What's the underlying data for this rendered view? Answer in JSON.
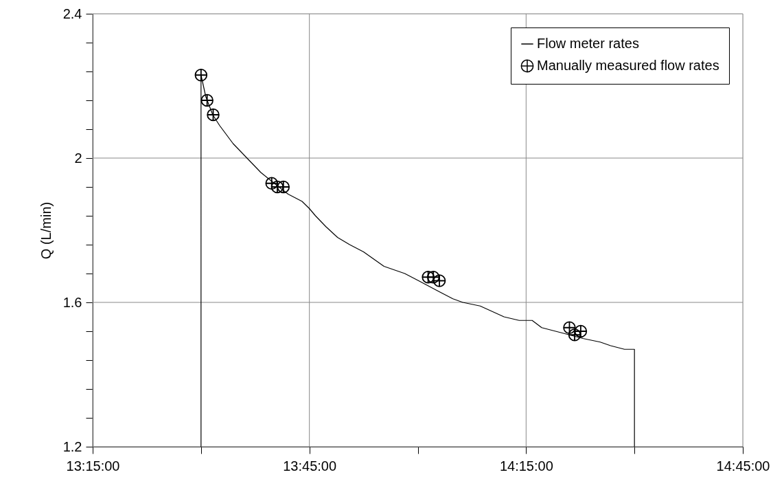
{
  "chart_data": {
    "type": "line",
    "ylabel": "Q (L/min)",
    "xlim": [
      13.25,
      14.75
    ],
    "xticks": [
      {
        "value": 13.25,
        "label": "13:15:00"
      },
      {
        "value": 13.5,
        "label": null
      },
      {
        "value": 13.75,
        "label": "13:45:00"
      },
      {
        "value": 14.0,
        "label": null
      },
      {
        "value": 14.25,
        "label": "14:15:00"
      },
      {
        "value": 14.5,
        "label": null
      },
      {
        "value": 14.75,
        "label": "14:45:00"
      }
    ],
    "ylim": [
      1.2,
      2.4
    ],
    "yticks": [
      1.2,
      {
        "value": 1.28,
        "label": null
      },
      {
        "value": 1.36,
        "label": null
      },
      {
        "value": 1.44,
        "label": null
      },
      {
        "value": 1.52,
        "label": null
      },
      1.6,
      {
        "value": 1.68,
        "label": null
      },
      {
        "value": 1.76,
        "label": null
      },
      {
        "value": 1.84,
        "label": null
      },
      {
        "value": 1.92,
        "label": null
      },
      2,
      {
        "value": 2.08,
        "label": null
      },
      {
        "value": 2.16,
        "label": null
      },
      {
        "value": 2.24,
        "label": null
      },
      {
        "value": 2.32,
        "label": null
      },
      2.4
    ],
    "grid": true,
    "legend": "top right",
    "series": [
      {
        "name": "Flow meter rates",
        "color": "#000000",
        "line_style": "solid",
        "x": [
          13.5,
          13.5,
          13.511,
          13.527,
          13.543,
          13.574,
          13.606,
          13.638,
          13.669,
          13.701,
          13.733,
          13.75,
          13.764,
          13.788,
          13.815,
          13.843,
          13.875,
          13.922,
          13.97,
          14.002,
          14.049,
          14.081,
          14.104,
          14.144,
          14.199,
          14.234,
          14.264,
          14.286,
          14.318,
          14.35,
          14.381,
          14.421,
          14.445,
          14.477,
          14.5,
          14.5
        ],
        "values": [
          1.2,
          2.23,
          2.17,
          2.12,
          2.09,
          2.04,
          2.0,
          1.96,
          1.93,
          1.9,
          1.88,
          1.86,
          1.84,
          1.81,
          1.78,
          1.76,
          1.74,
          1.7,
          1.68,
          1.66,
          1.63,
          1.61,
          1.6,
          1.59,
          1.56,
          1.55,
          1.55,
          1.53,
          1.52,
          1.51,
          1.5,
          1.49,
          1.48,
          1.47,
          1.47,
          1.2
        ]
      },
      {
        "name": "Manually measured flow rates",
        "type": "scatter",
        "color": "#000000",
        "marker": "cross",
        "x": [
          13.5,
          13.514,
          13.528,
          13.663,
          13.676,
          13.69,
          14.024,
          14.036,
          14.05,
          14.35,
          14.362,
          14.376
        ],
        "values": [
          2.23,
          2.16,
          2.12,
          1.93,
          1.92,
          1.92,
          1.67,
          1.67,
          1.66,
          1.53,
          1.51,
          1.52
        ]
      }
    ]
  }
}
